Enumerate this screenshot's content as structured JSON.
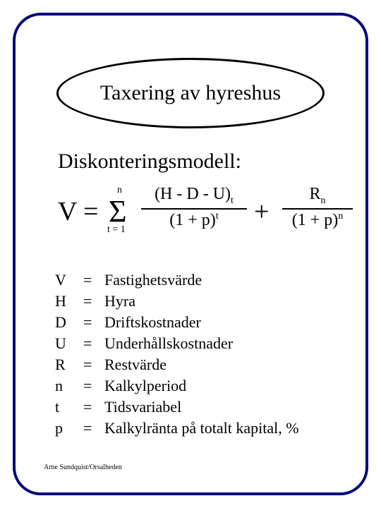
{
  "colors": {
    "frame_border": "#000080",
    "text": "#000000",
    "background": "#ffffff"
  },
  "title": "Taxering av hyreshus",
  "subtitle": "Diskonteringsmodell:",
  "formula": {
    "lhs": "V",
    "equals": "=",
    "sigma": "Σ",
    "sum_upper": "n",
    "sum_lower": "t = 1",
    "frac1_num_main": "(H - D - U)",
    "frac1_num_sub": "t",
    "frac1_den_main": "(1 + p)",
    "frac1_den_sup": "t",
    "plus": "+",
    "frac2_num_main": "R",
    "frac2_num_sub": "n",
    "frac2_den_main": "(1 + p)",
    "frac2_den_sup": "n"
  },
  "definitions": [
    {
      "sym": "V",
      "text": "Fastighetsvärde"
    },
    {
      "sym": "H",
      "text": "Hyra"
    },
    {
      "sym": "D",
      "text": "Driftskostnader"
    },
    {
      "sym": "U",
      "text": "Underhållskostnader"
    },
    {
      "sym": "R",
      "text": "Restvärde"
    },
    {
      "sym": "n",
      "text": "Kalkylperiod"
    },
    {
      "sym": "t",
      "text": "Tidsvariabel"
    },
    {
      "sym": "p",
      "text": "Kalkylränta på totalt kapital, %"
    }
  ],
  "eq_sign": "=",
  "footer": "Arne Sundquist/Orsalheden"
}
